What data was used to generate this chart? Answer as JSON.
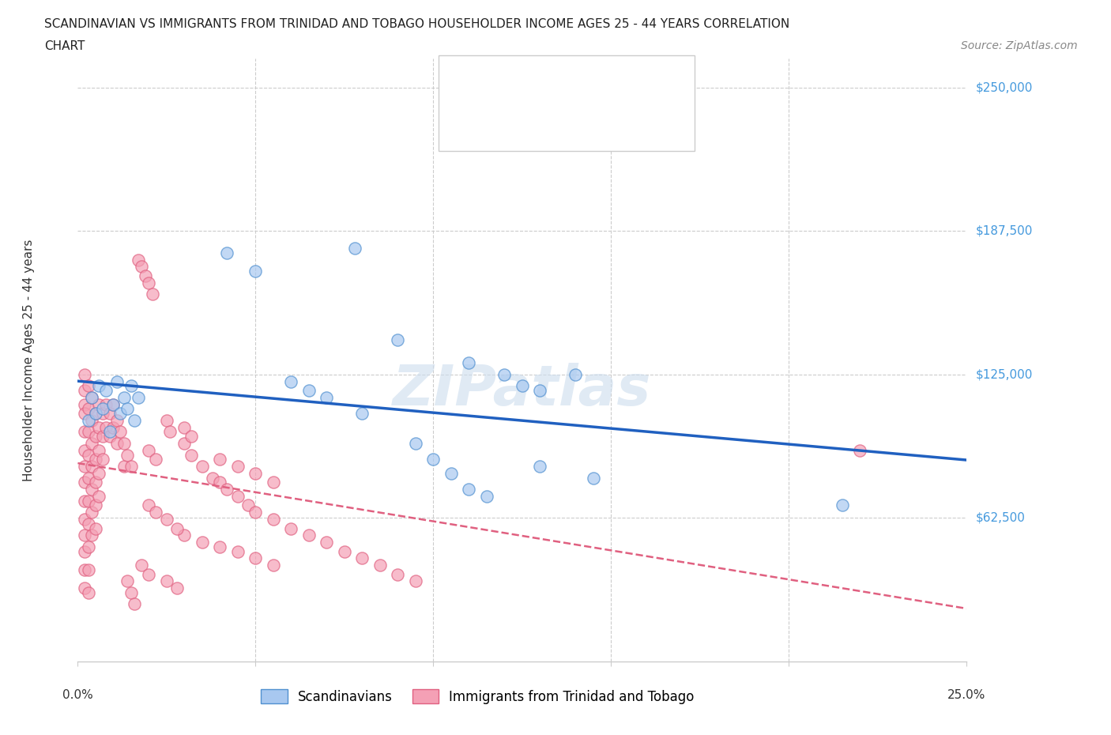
{
  "title_line1": "SCANDINAVIAN VS IMMIGRANTS FROM TRINIDAD AND TOBAGO HOUSEHOLDER INCOME AGES 25 - 44 YEARS CORRELATION",
  "title_line2": "CHART",
  "source_text": "Source: ZipAtlas.com",
  "ylabel": "Householder Income Ages 25 - 44 years",
  "xlim": [
    0.0,
    0.25
  ],
  "ylim": [
    0,
    262500
  ],
  "yticks": [
    62500,
    125000,
    187500,
    250000
  ],
  "ytick_labels": [
    "$62,500",
    "$125,000",
    "$187,500",
    "$250,000"
  ],
  "blue_color": "#a8c8f0",
  "pink_color": "#f4a0b5",
  "blue_line_color": "#2060c0",
  "pink_line_color": "#e06080",
  "ytick_color": "#4499dd",
  "watermark_text": "ZIPatlas",
  "blue_points": [
    [
      0.003,
      105000
    ],
    [
      0.004,
      115000
    ],
    [
      0.005,
      108000
    ],
    [
      0.006,
      120000
    ],
    [
      0.007,
      110000
    ],
    [
      0.008,
      118000
    ],
    [
      0.009,
      100000
    ],
    [
      0.01,
      112000
    ],
    [
      0.011,
      122000
    ],
    [
      0.012,
      108000
    ],
    [
      0.013,
      115000
    ],
    [
      0.014,
      110000
    ],
    [
      0.015,
      120000
    ],
    [
      0.016,
      105000
    ],
    [
      0.017,
      115000
    ],
    [
      0.042,
      178000
    ],
    [
      0.078,
      180000
    ],
    [
      0.09,
      140000
    ],
    [
      0.11,
      130000
    ],
    [
      0.12,
      125000
    ],
    [
      0.125,
      120000
    ],
    [
      0.13,
      118000
    ],
    [
      0.14,
      125000
    ],
    [
      0.05,
      170000
    ],
    [
      0.06,
      122000
    ],
    [
      0.065,
      118000
    ],
    [
      0.07,
      115000
    ],
    [
      0.08,
      108000
    ],
    [
      0.095,
      95000
    ],
    [
      0.1,
      88000
    ],
    [
      0.105,
      82000
    ],
    [
      0.11,
      75000
    ],
    [
      0.115,
      72000
    ],
    [
      0.13,
      85000
    ],
    [
      0.145,
      80000
    ],
    [
      0.215,
      68000
    ]
  ],
  "pink_points": [
    [
      0.002,
      125000
    ],
    [
      0.002,
      118000
    ],
    [
      0.002,
      112000
    ],
    [
      0.002,
      108000
    ],
    [
      0.002,
      100000
    ],
    [
      0.002,
      92000
    ],
    [
      0.002,
      85000
    ],
    [
      0.002,
      78000
    ],
    [
      0.002,
      70000
    ],
    [
      0.002,
      62000
    ],
    [
      0.002,
      55000
    ],
    [
      0.002,
      48000
    ],
    [
      0.002,
      40000
    ],
    [
      0.002,
      32000
    ],
    [
      0.003,
      120000
    ],
    [
      0.003,
      110000
    ],
    [
      0.003,
      100000
    ],
    [
      0.003,
      90000
    ],
    [
      0.003,
      80000
    ],
    [
      0.003,
      70000
    ],
    [
      0.003,
      60000
    ],
    [
      0.003,
      50000
    ],
    [
      0.003,
      40000
    ],
    [
      0.003,
      30000
    ],
    [
      0.004,
      115000
    ],
    [
      0.004,
      105000
    ],
    [
      0.004,
      95000
    ],
    [
      0.004,
      85000
    ],
    [
      0.004,
      75000
    ],
    [
      0.004,
      65000
    ],
    [
      0.004,
      55000
    ],
    [
      0.005,
      108000
    ],
    [
      0.005,
      98000
    ],
    [
      0.005,
      88000
    ],
    [
      0.005,
      78000
    ],
    [
      0.005,
      68000
    ],
    [
      0.005,
      58000
    ],
    [
      0.006,
      112000
    ],
    [
      0.006,
      102000
    ],
    [
      0.006,
      92000
    ],
    [
      0.006,
      82000
    ],
    [
      0.006,
      72000
    ],
    [
      0.007,
      108000
    ],
    [
      0.007,
      98000
    ],
    [
      0.007,
      88000
    ],
    [
      0.008,
      112000
    ],
    [
      0.008,
      102000
    ],
    [
      0.009,
      108000
    ],
    [
      0.009,
      98000
    ],
    [
      0.01,
      112000
    ],
    [
      0.01,
      102000
    ],
    [
      0.011,
      105000
    ],
    [
      0.011,
      95000
    ],
    [
      0.012,
      100000
    ],
    [
      0.013,
      95000
    ],
    [
      0.013,
      85000
    ],
    [
      0.014,
      90000
    ],
    [
      0.015,
      85000
    ],
    [
      0.017,
      175000
    ],
    [
      0.018,
      172000
    ],
    [
      0.019,
      168000
    ],
    [
      0.02,
      165000
    ],
    [
      0.021,
      160000
    ],
    [
      0.014,
      35000
    ],
    [
      0.015,
      30000
    ],
    [
      0.016,
      25000
    ],
    [
      0.02,
      92000
    ],
    [
      0.022,
      88000
    ],
    [
      0.025,
      105000
    ],
    [
      0.026,
      100000
    ],
    [
      0.03,
      95000
    ],
    [
      0.032,
      90000
    ],
    [
      0.035,
      85000
    ],
    [
      0.038,
      80000
    ],
    [
      0.04,
      78000
    ],
    [
      0.042,
      75000
    ],
    [
      0.045,
      72000
    ],
    [
      0.048,
      68000
    ],
    [
      0.05,
      65000
    ],
    [
      0.055,
      62000
    ],
    [
      0.06,
      58000
    ],
    [
      0.065,
      55000
    ],
    [
      0.07,
      52000
    ],
    [
      0.075,
      48000
    ],
    [
      0.08,
      45000
    ],
    [
      0.085,
      42000
    ],
    [
      0.09,
      38000
    ],
    [
      0.095,
      35000
    ],
    [
      0.03,
      55000
    ],
    [
      0.035,
      52000
    ],
    [
      0.04,
      50000
    ],
    [
      0.045,
      48000
    ],
    [
      0.05,
      45000
    ],
    [
      0.055,
      42000
    ],
    [
      0.04,
      88000
    ],
    [
      0.045,
      85000
    ],
    [
      0.05,
      82000
    ],
    [
      0.055,
      78000
    ],
    [
      0.02,
      68000
    ],
    [
      0.022,
      65000
    ],
    [
      0.025,
      62000
    ],
    [
      0.028,
      58000
    ],
    [
      0.03,
      102000
    ],
    [
      0.032,
      98000
    ],
    [
      0.018,
      42000
    ],
    [
      0.02,
      38000
    ],
    [
      0.025,
      35000
    ],
    [
      0.028,
      32000
    ],
    [
      0.22,
      92000
    ]
  ]
}
